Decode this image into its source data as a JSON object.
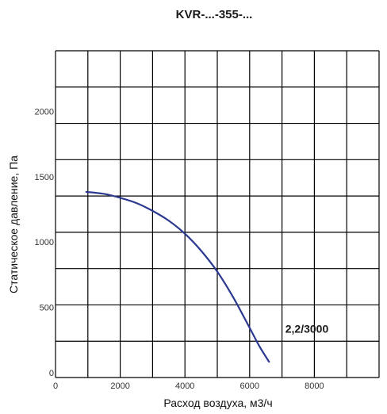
{
  "chart_data": {
    "type": "line",
    "title": "KVR-...-355-...",
    "xlabel": "Расход воздуха, м3/ч",
    "ylabel": "Статическое давление, Па",
    "xlim": [
      0,
      10000
    ],
    "ylim": [
      0,
      2500
    ],
    "x_ticks": [
      {
        "value": 0,
        "label": "0"
      },
      {
        "value": 2000,
        "label": "2000"
      },
      {
        "value": 4000,
        "label": "4000"
      },
      {
        "value": 6000,
        "label": "6000"
      },
      {
        "value": 8000,
        "label": "8000"
      }
    ],
    "y_ticks": [
      {
        "value": 0,
        "label": "0"
      },
      {
        "value": 500,
        "label": "500"
      },
      {
        "value": 1000,
        "label": "1000"
      },
      {
        "value": 1500,
        "label": "1500"
      },
      {
        "value": 2000,
        "label": "2000"
      }
    ],
    "grid": true,
    "series": [
      {
        "name": "2,2/3000",
        "color": "#2b3990",
        "x": [
          950,
          1500,
          2000,
          2500,
          3000,
          3500,
          4000,
          4500,
          5000,
          5500,
          6000,
          6300,
          6600
        ],
        "y": [
          1420,
          1405,
          1375,
          1335,
          1275,
          1200,
          1100,
          970,
          810,
          610,
          380,
          240,
          120
        ]
      }
    ],
    "annotations": [
      {
        "text": "2,2/3000",
        "x": 7200,
        "y": 320
      }
    ]
  }
}
